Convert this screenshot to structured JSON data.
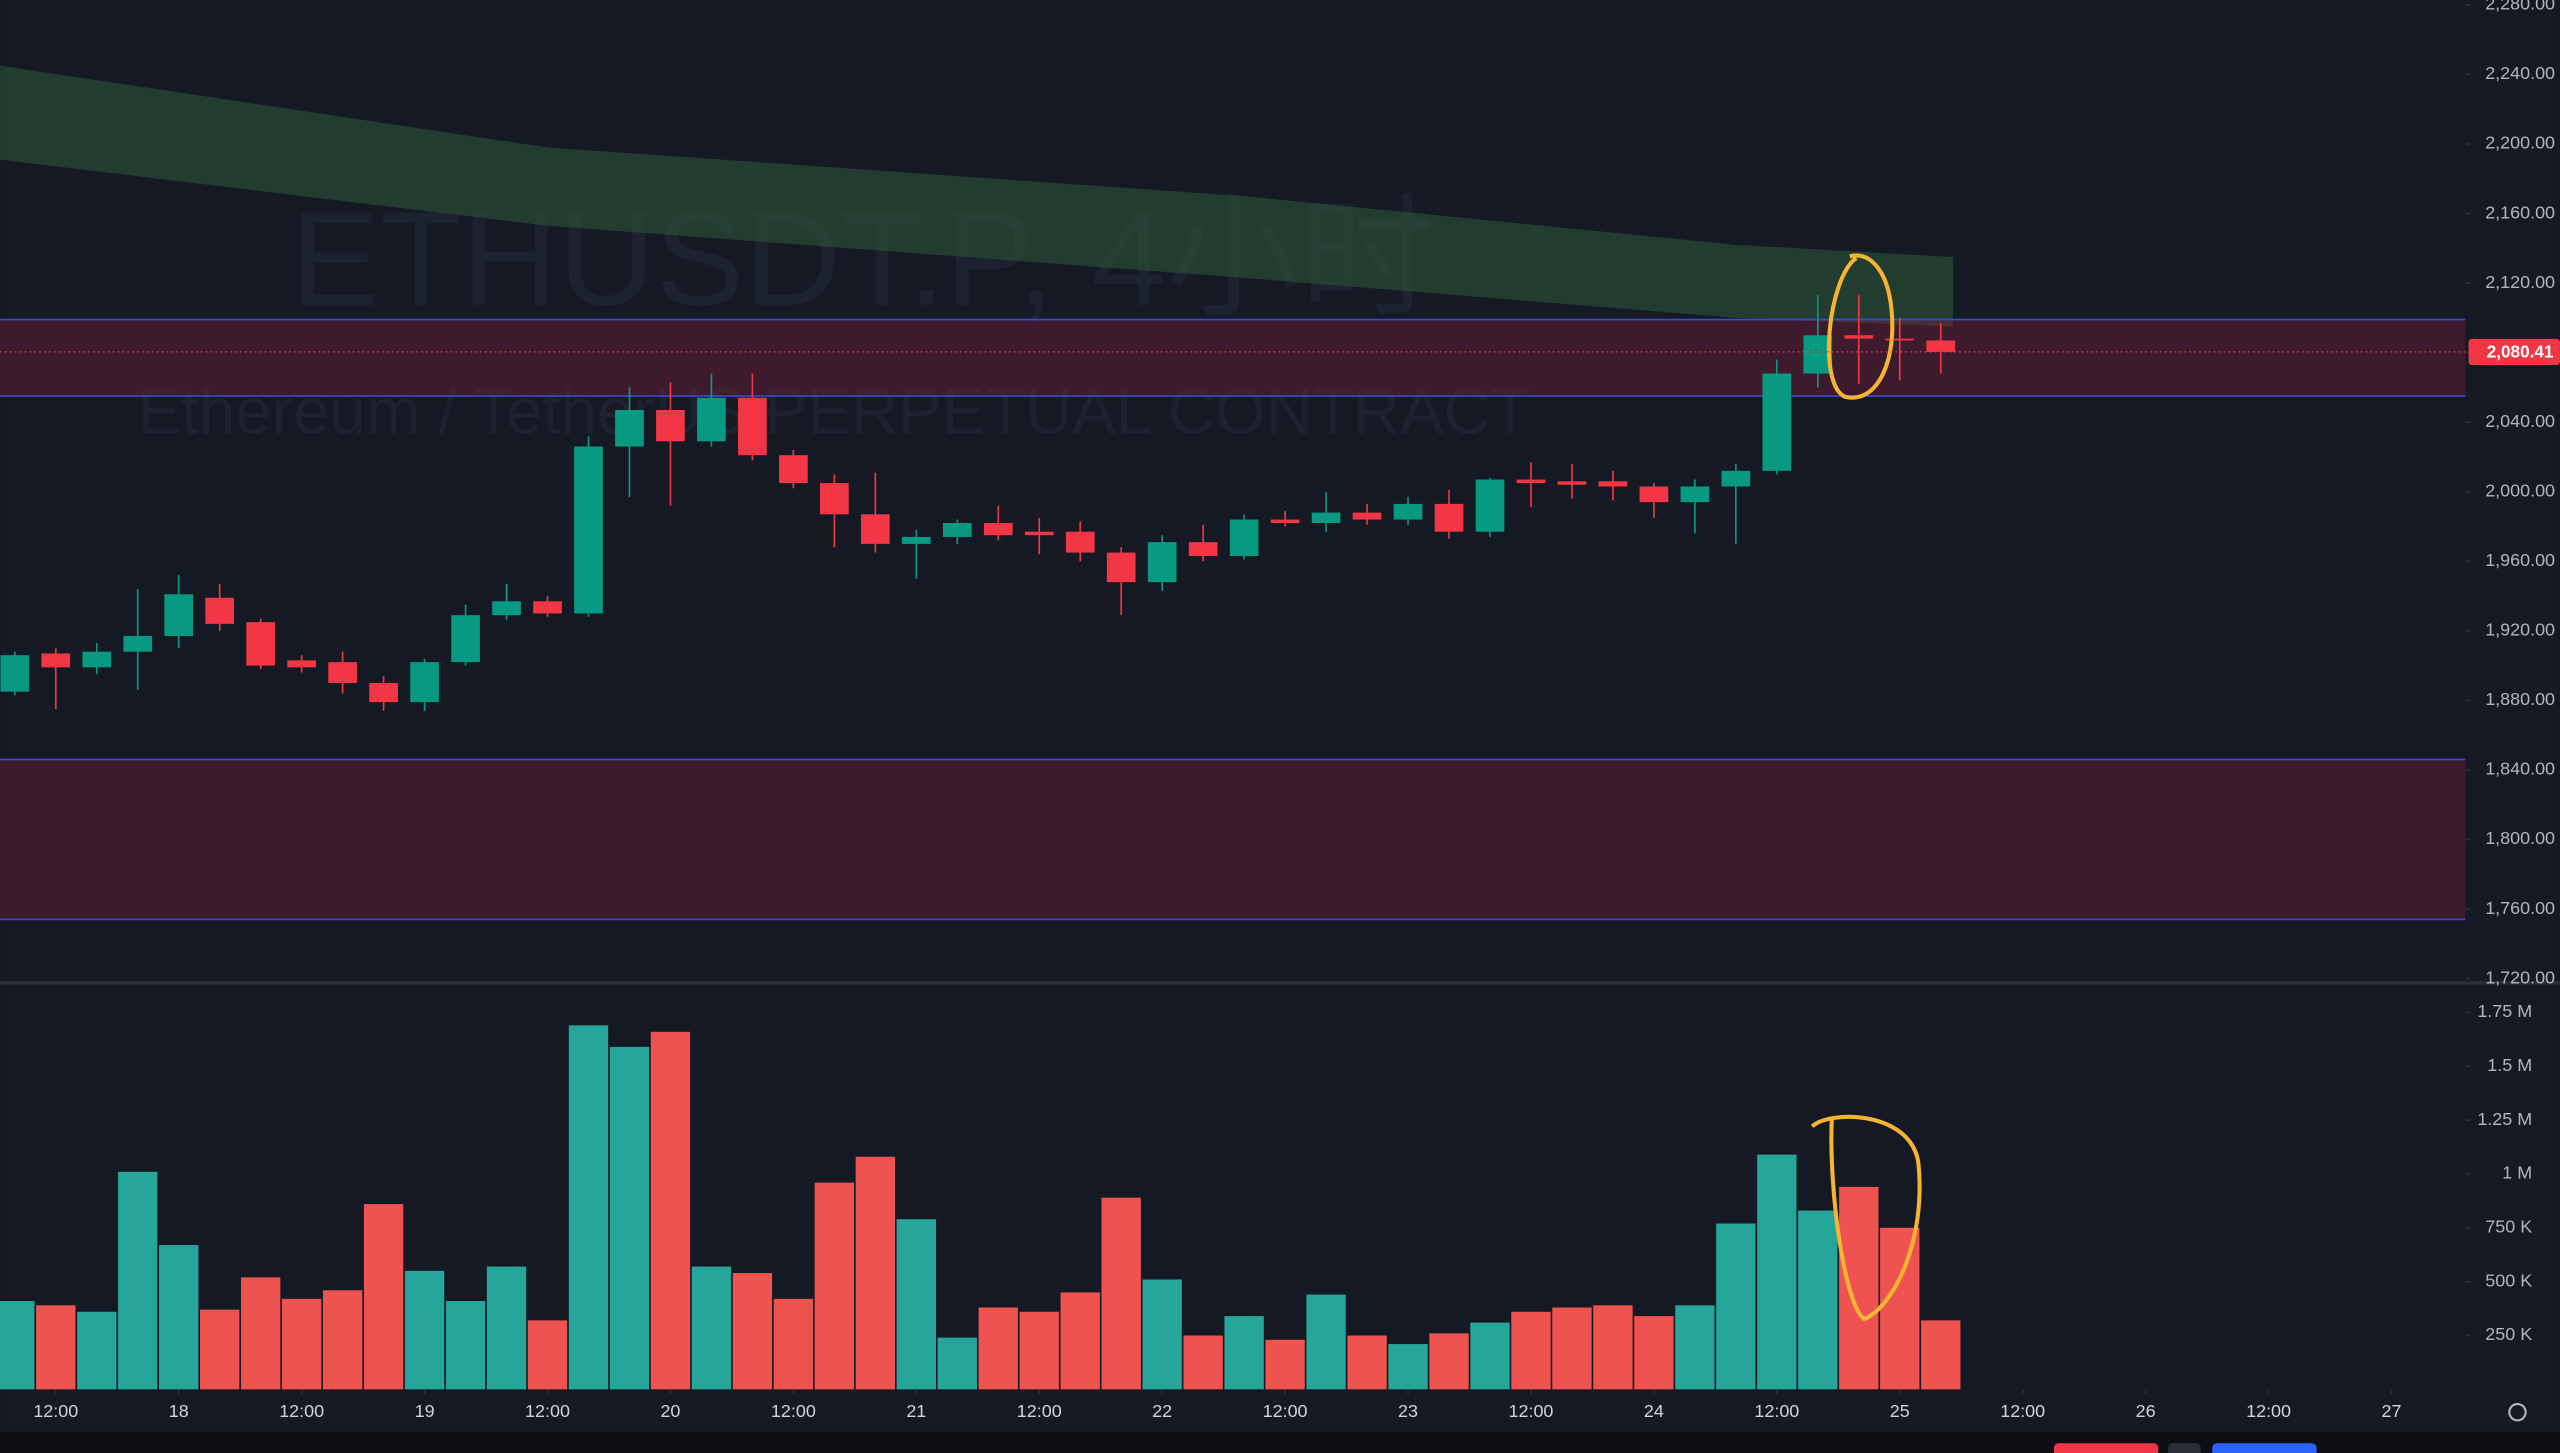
{
  "chart_data": [
    {
      "type": "candlestick",
      "title": "ETHUSDT.P, 4小时",
      "subtitle": "Ethereum / TetherUS PERPETUAL CONTRACT",
      "open": [
        1885,
        1907,
        1899,
        1908,
        1917,
        1939,
        1925,
        1903,
        1902,
        1890,
        1879,
        1902,
        1929,
        1937,
        1930,
        2026,
        2047,
        2029,
        2054,
        2021,
        2005,
        1987,
        1970,
        1974,
        1982,
        1977,
        1977,
        1965,
        1948,
        1971,
        1963,
        1984,
        1982,
        1988,
        1984,
        1993,
        1977,
        2007,
        2006,
        2006,
        2003,
        1994,
        2003,
        2012,
        2068,
        2090,
        2088,
        2087
      ],
      "high": [
        1908,
        1910,
        1913,
        1944,
        1952,
        1947,
        1927,
        1906,
        1908,
        1894,
        1904,
        1935,
        1947,
        1940,
        2032,
        2060,
        2063,
        2068,
        2068,
        2024,
        2010,
        2011,
        1978,
        1984,
        1992,
        1985,
        1983,
        1968,
        1975,
        1981,
        1987,
        1989,
        2000,
        1993,
        1997,
        2001,
        2008,
        2017,
        2016,
        2012,
        2005,
        2007,
        2016,
        2076,
        2113,
        2113,
        2100,
        2097
      ],
      "low": [
        1883,
        1875,
        1895,
        1886,
        1910,
        1920,
        1898,
        1896,
        1884,
        1874,
        1874,
        1900,
        1926,
        1928,
        1928,
        1997,
        1992,
        2026,
        2018,
        2002,
        1968,
        1965,
        1950,
        1970,
        1972,
        1964,
        1960,
        1929,
        1943,
        1960,
        1961,
        1980,
        1977,
        1981,
        1981,
        1973,
        1974,
        1991,
        1996,
        1995,
        1985,
        1976,
        1970,
        2010,
        2060,
        2062,
        2064,
        2068
      ],
      "close": [
        1906,
        1899,
        1908,
        1917,
        1941,
        1924,
        1900,
        1899,
        1890,
        1879,
        1902,
        1929,
        1937,
        1930,
        2026,
        2047,
        2029,
        2054,
        2021,
        2005,
        1987,
        1970,
        1974,
        1982,
        1975,
        1975,
        1965,
        1948,
        1971,
        1963,
        1984,
        1982,
        1988,
        1984,
        1993,
        1977,
        2007,
        2005,
        2004,
        2003,
        1994,
        2003,
        2012,
        2068,
        2090,
        2088,
        2087,
        2080.41
      ],
      "up_color": "#089981",
      "down_color": "#f23645",
      "xlim": [
        -0.36,
        59.8
      ],
      "ylim": [
        1718.5,
        2282.8
      ],
      "yticks": [
        {
          "value": 2280,
          "label": "2,280.00"
        },
        {
          "value": 2240,
          "label": "2,240.00"
        },
        {
          "value": 2200,
          "label": "2,200.00"
        },
        {
          "value": 2160,
          "label": "2,160.00"
        },
        {
          "value": 2120,
          "label": "2,120.00"
        },
        {
          "value": 2080,
          "label": "2,080.00"
        },
        {
          "value": 2040,
          "label": "2,040.00"
        },
        {
          "value": 2000,
          "label": "2,000.00"
        },
        {
          "value": 1960,
          "label": "1,960.00"
        },
        {
          "value": 1920,
          "label": "1,920.00"
        },
        {
          "value": 1880,
          "label": "1,880.00"
        },
        {
          "value": 1840,
          "label": "1,840.00"
        },
        {
          "value": 1800,
          "label": "1,800.00"
        },
        {
          "value": 1760,
          "label": "1,760.00"
        },
        {
          "value": 1720,
          "label": "1,720.00"
        }
      ],
      "last_price": {
        "value": 2080.41,
        "label": "2,080.41"
      },
      "zones": [
        {
          "top": 2099,
          "bottom": 2055
        },
        {
          "top": 1846,
          "bottom": 1754
        }
      ],
      "ribbon": {
        "x": [
          -0.36,
          13,
          30,
          42,
          47.3
        ],
        "upper": [
          2245,
          2198,
          2170,
          2142,
          2135
        ],
        "lower": [
          2191,
          2153,
          2123,
          2100,
          2095
        ],
        "color": "#2e5a3a"
      }
    },
    {
      "type": "bar",
      "values": [
        410000,
        390000,
        360000,
        1010000,
        670000,
        370000,
        520000,
        420000,
        460000,
        860000,
        550000,
        410000,
        570000,
        320000,
        1690000,
        1590000,
        1660000,
        570000,
        540000,
        420000,
        960000,
        1080000,
        790000,
        240000,
        380000,
        360000,
        450000,
        890000,
        510000,
        250000,
        340000,
        230000,
        440000,
        250000,
        210000,
        260000,
        310000,
        360000,
        380000,
        390000,
        340000,
        390000,
        770000,
        1090000,
        830000,
        940000,
        750000,
        320000
      ],
      "up_color": "#26a69a",
      "down_color": "#ef5350",
      "ylim": [
        0,
        1880000
      ],
      "yticks": [
        {
          "value": 250000,
          "label": "250 K"
        },
        {
          "value": 500000,
          "label": "500 K"
        },
        {
          "value": 750000,
          "label": "750 K"
        },
        {
          "value": 1000000,
          "label": "1 M"
        },
        {
          "value": 1250000,
          "label": "1.25 M"
        },
        {
          "value": 1500000,
          "label": "1.5 M"
        },
        {
          "value": 1750000,
          "label": "1.75 M"
        }
      ],
      "xticks": [
        {
          "value": 1,
          "label": "12:00"
        },
        {
          "value": 4,
          "label": "18"
        },
        {
          "value": 7,
          "label": "12:00"
        },
        {
          "value": 10,
          "label": "19"
        },
        {
          "value": 13,
          "label": "12:00"
        },
        {
          "value": 16,
          "label": "20"
        },
        {
          "value": 19,
          "label": "12:00"
        },
        {
          "value": 22,
          "label": "21"
        },
        {
          "value": 25,
          "label": "12:00"
        },
        {
          "value": 28,
          "label": "22"
        },
        {
          "value": 31,
          "label": "12:00"
        },
        {
          "value": 34,
          "label": "23"
        },
        {
          "value": 37,
          "label": "12:00"
        },
        {
          "value": 40,
          "label": "24"
        },
        {
          "value": 43,
          "label": "12:00"
        },
        {
          "value": 46,
          "label": "25"
        },
        {
          "value": 49,
          "label": "12:00"
        },
        {
          "value": 52,
          "label": "26"
        },
        {
          "value": 55,
          "label": "12:00"
        },
        {
          "value": 58,
          "label": "27"
        }
      ]
    }
  ]
}
